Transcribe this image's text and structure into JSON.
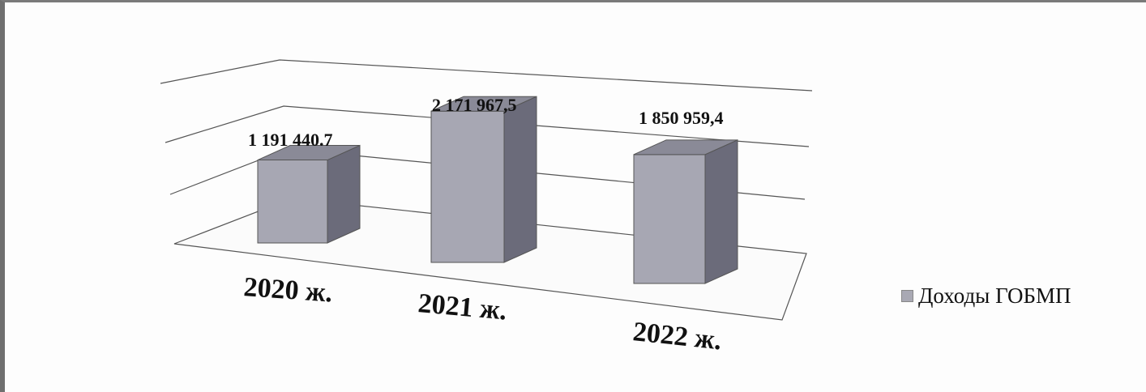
{
  "chart_data": {
    "type": "bar",
    "categories": [
      "2020 ж.",
      "2021 ж.",
      "2022 ж."
    ],
    "series": [
      {
        "name": "Доходы ГОБМП",
        "values": [
          1191440.7,
          2171967.5,
          1850959.4
        ]
      }
    ],
    "data_labels": [
      "1 191 440.7",
      "2 171 967,5",
      "1 850 959,4"
    ],
    "legend_position": "right",
    "grid": true,
    "colors": {
      "front": "#a7a7b3",
      "side": "#6b6b7a",
      "top": "#8a8a97"
    }
  }
}
